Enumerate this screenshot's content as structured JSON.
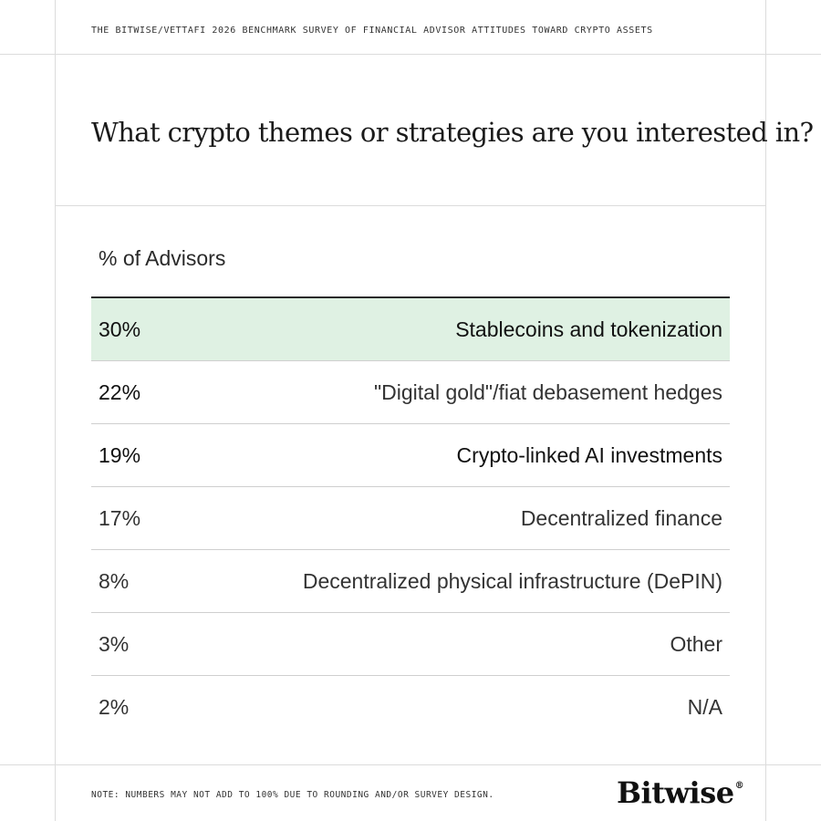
{
  "header": {
    "survey_title": "THE BITWISE/VETTAFI 2026 BENCHMARK SURVEY OF FINANCIAL ADVISOR ATTITUDES TOWARD CRYPTO ASSETS"
  },
  "question": "What crypto themes or strategies are you interested in?",
  "chart_data": {
    "type": "table",
    "column_label": "% of Advisors",
    "rows": [
      {
        "value": 30,
        "value_label": "30%",
        "label": "Stablecoins and tokenization"
      },
      {
        "value": 22,
        "value_label": "22%",
        "label": "\"Digital gold\"/fiat debasement hedges"
      },
      {
        "value": 19,
        "value_label": "19%",
        "label": "Crypto-linked AI investments"
      },
      {
        "value": 17,
        "value_label": "17%",
        "label": "Decentralized finance"
      },
      {
        "value": 8,
        "value_label": "8%",
        "label": "Decentralized physical infrastructure (DePIN)"
      },
      {
        "value": 3,
        "value_label": "3%",
        "label": "Other"
      },
      {
        "value": 2,
        "value_label": "2%",
        "label": "N/A"
      }
    ],
    "highlight_color": "#dff1e3"
  },
  "footer": {
    "note": "NOTE: NUMBERS MAY NOT ADD TO 100% DUE TO ROUNDING AND/OR SURVEY DESIGN.",
    "logo_text": "Bitwise",
    "logo_mark": "®"
  }
}
